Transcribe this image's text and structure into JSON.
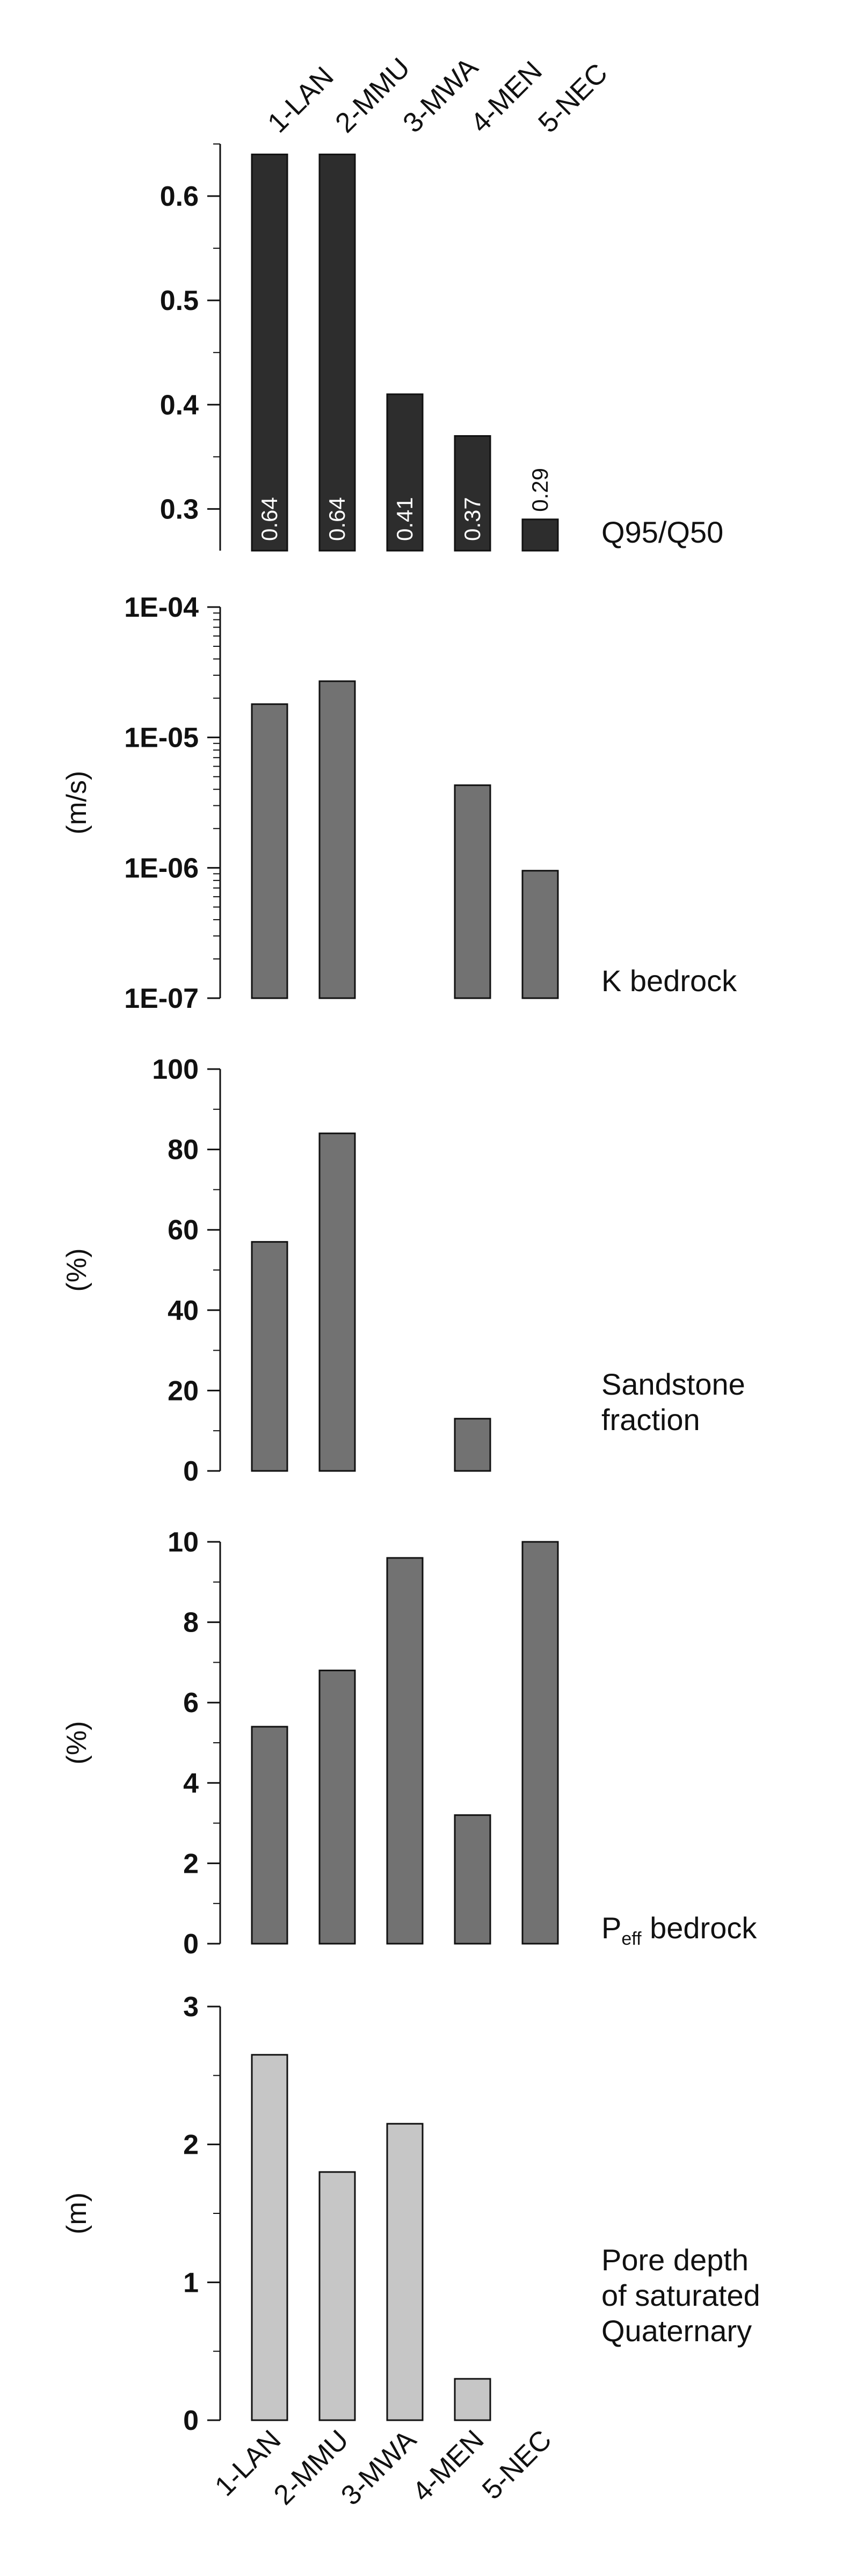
{
  "categories_top": [
    "1-LAN",
    "2-MMU",
    "3-MWA",
    "4-MEN",
    "5-NEC"
  ],
  "categories_bottom": [
    "1-LAN",
    "2-MMU",
    "3-MWA",
    "4-MEN",
    "5-NEC"
  ],
  "chart_data": [
    {
      "type": "bar",
      "title": "Q95/Q50",
      "ylabel": "",
      "ylim": [
        0.26,
        0.65
      ],
      "yticks": [
        "0.3",
        "0.4",
        "0.5",
        "0.6"
      ],
      "scale": "linear",
      "bar_color": "#2d2d2d",
      "categories": [
        "1-LAN",
        "2-MMU",
        "3-MWA",
        "4-MEN",
        "5-NEC"
      ],
      "values": [
        0.64,
        0.64,
        0.41,
        0.37,
        0.29
      ],
      "data_labels": [
        "0.64",
        "0.64",
        "0.41",
        "0.37",
        "0.29"
      ]
    },
    {
      "type": "bar",
      "title": "K bedrock",
      "ylabel": "(m/s)",
      "ylim": [
        1e-07,
        0.0001
      ],
      "yticks": [
        "1E-07",
        "1E-06",
        "1E-05",
        "1E-04"
      ],
      "scale": "log",
      "bar_color": "#727272",
      "categories": [
        "1-LAN",
        "2-MMU",
        "3-MWA",
        "4-MEN",
        "5-NEC"
      ],
      "values": [
        1.8e-05,
        2.7e-05,
        1e-07,
        4.3e-06,
        9.5e-07
      ]
    },
    {
      "type": "bar",
      "title": "Sandstone fraction",
      "ylabel": "(%)",
      "ylim": [
        0,
        100
      ],
      "yticks": [
        "0",
        "20",
        "40",
        "60",
        "80",
        "100"
      ],
      "scale": "linear",
      "bar_color": "#727272",
      "categories": [
        "1-LAN",
        "2-MMU",
        "3-MWA",
        "4-MEN",
        "5-NEC"
      ],
      "values": [
        57,
        84,
        0,
        13,
        0
      ]
    },
    {
      "type": "bar",
      "title": "Peff bedrock",
      "title_main": "P",
      "title_sub": "eff",
      "title_rest": " bedrock",
      "ylabel": "(%)",
      "ylim": [
        0,
        10
      ],
      "yticks": [
        "0",
        "2",
        "4",
        "6",
        "8",
        "10"
      ],
      "scale": "linear",
      "bar_color": "#727272",
      "categories": [
        "1-LAN",
        "2-MMU",
        "3-MWA",
        "4-MEN",
        "5-NEC"
      ],
      "values": [
        5.4,
        6.8,
        9.6,
        3.2,
        10.0
      ]
    },
    {
      "type": "bar",
      "title": "Pore depth of saturated Quaternary",
      "ylabel": "(m)",
      "ylim": [
        0,
        3
      ],
      "yticks": [
        "0",
        "1",
        "2",
        "3"
      ],
      "scale": "linear",
      "bar_color": "#c6c6c6",
      "categories": [
        "1-LAN",
        "2-MMU",
        "3-MWA",
        "4-MEN",
        "5-NEC"
      ],
      "values": [
        2.65,
        1.8,
        2.15,
        0.3,
        0.0
      ]
    }
  ]
}
